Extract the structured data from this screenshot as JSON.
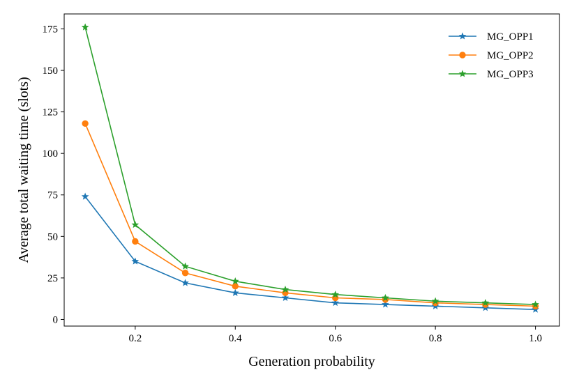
{
  "chart_data": {
    "type": "line",
    "title": "",
    "xlabel": "Generation probability",
    "ylabel": "Average total waiting time (slots)",
    "x": [
      0.1,
      0.2,
      0.3,
      0.4,
      0.5,
      0.6,
      0.7,
      0.8,
      0.9,
      1.0
    ],
    "xlim": [
      0.058,
      1.048
    ],
    "ylim": [
      -4,
      184
    ],
    "xticks": [
      0.2,
      0.4,
      0.6,
      0.8,
      1.0
    ],
    "xtick_labels": [
      "0.2",
      "0.4",
      "0.6",
      "0.8",
      "1.0"
    ],
    "yticks": [
      0,
      25,
      50,
      75,
      100,
      125,
      150,
      175
    ],
    "ytick_labels": [
      "0",
      "25",
      "50",
      "75",
      "100",
      "125",
      "150",
      "175"
    ],
    "grid": false,
    "legend_position": "top-right",
    "series": [
      {
        "name": "MG_OPP1",
        "color": "#1f77b4",
        "marker": "star",
        "values": [
          74,
          35,
          22,
          16,
          13,
          10,
          9,
          8,
          7,
          6
        ]
      },
      {
        "name": "MG_OPP2",
        "color": "#ff7f0e",
        "marker": "circle",
        "values": [
          118,
          47,
          28,
          20,
          16,
          13,
          12,
          10,
          9,
          8
        ]
      },
      {
        "name": "MG_OPP3",
        "color": "#2ca02c",
        "marker": "star",
        "values": [
          176,
          57,
          32,
          23,
          18,
          15,
          13,
          11,
          10,
          9
        ]
      }
    ]
  }
}
